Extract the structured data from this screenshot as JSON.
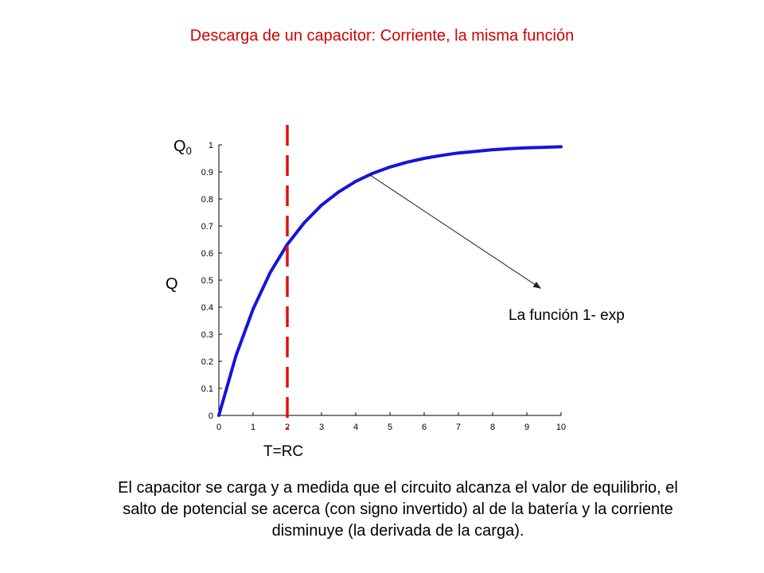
{
  "title": "Descarga de un capacitor: Corriente, la misma función",
  "y_label_top": {
    "base": "Q",
    "sub": "0"
  },
  "y_label_mid": "Q",
  "annotation": "La función 1- exp",
  "marker_label": "T=RC",
  "caption": "El capacitor se carga y a medida que el circuito alcanza el valor de equilibrio, el salto de potencial se acerca (con signo invertido) al de la batería y la corriente disminuye (la derivada de la carga).",
  "colors": {
    "title": "#d40000",
    "curve": "#1414dc",
    "marker": "#e01010",
    "arrow": "#222222"
  },
  "chart_data": {
    "type": "line",
    "title": "",
    "xlabel": "",
    "ylabel": "",
    "xlim": [
      0,
      10
    ],
    "ylim": [
      0,
      1
    ],
    "xticks": [
      0,
      1,
      2,
      3,
      4,
      5,
      6,
      7,
      8,
      9,
      10
    ],
    "yticks": [
      0,
      0.1,
      0.2,
      0.3,
      0.4,
      0.5,
      0.6,
      0.7,
      0.8,
      0.9,
      1
    ],
    "ytick_labels": [
      "0",
      "0.1",
      "0.2",
      "0.3",
      "0.4",
      "0.5",
      "0.6",
      "0.7",
      "0.8",
      "0.9",
      "1"
    ],
    "grid": false,
    "series": [
      {
        "x": [
          0,
          0.5,
          1,
          1.5,
          2,
          2.5,
          3,
          3.5,
          4,
          4.5,
          5,
          5.5,
          6,
          6.5,
          7,
          7.5,
          8,
          8.5,
          9,
          9.5,
          10
        ],
        "y": [
          0,
          0.221,
          0.393,
          0.528,
          0.632,
          0.713,
          0.777,
          0.826,
          0.865,
          0.895,
          0.918,
          0.936,
          0.95,
          0.961,
          0.97,
          0.976,
          0.982,
          0.986,
          0.989,
          0.991,
          0.993
        ]
      }
    ],
    "vertical_marker": {
      "x": 2,
      "style": "dashed"
    },
    "arrow": {
      "from": [
        4.4,
        0.89
      ],
      "to": [
        9.4,
        0.47
      ]
    }
  }
}
